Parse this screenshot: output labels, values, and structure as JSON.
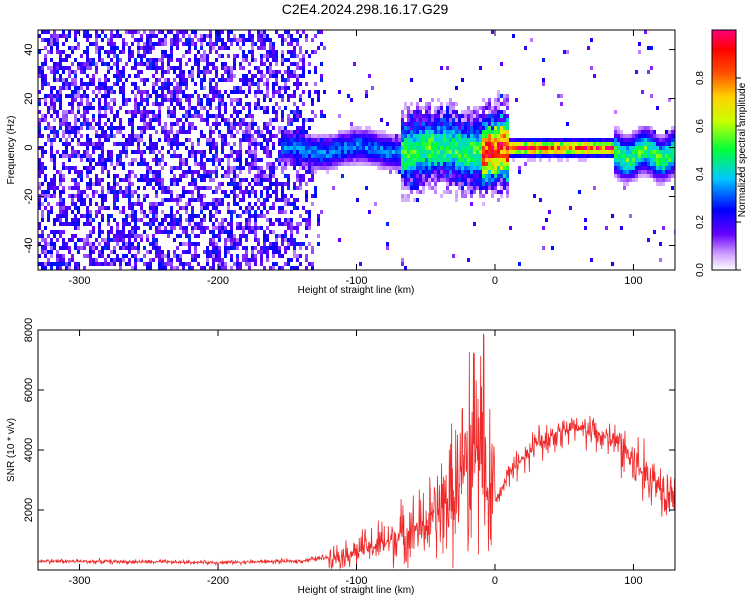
{
  "title": "C2E4.2024.298.16.17.G29",
  "colors": {
    "snr_line": "#ee2a2a",
    "cmap": [
      "#ffffff",
      "#6600ff",
      "#0000ff",
      "#00c8ff",
      "#00ff3c",
      "#ffff00",
      "#ff8000",
      "#ff0000",
      "#ff0080"
    ]
  },
  "chart_data": [
    {
      "type": "heatmap",
      "xlabel": "Height of straight line (km)",
      "ylabel": "Frequency (Hz)",
      "xlim": [
        -330,
        130
      ],
      "ylim": [
        -50,
        48
      ],
      "xticks": [
        -300,
        -200,
        -100,
        0,
        100
      ],
      "yticks": [
        -40,
        -20,
        0,
        20,
        40
      ],
      "colorbar": {
        "label": "Normalized spectral amplitude",
        "range": [
          0,
          1
        ],
        "ticks": [
          "0.0",
          "0.2",
          "0.4",
          "0.6",
          "0.8"
        ]
      },
      "description_points": [
        {
          "x": -330,
          "noise_level": 0.25
        },
        {
          "x": -150,
          "noise_level": 0.25
        },
        {
          "x": -120,
          "noise_level": 0.05
        },
        {
          "x": 0,
          "ridge_freq": 1,
          "peak_amp": 0.95
        },
        {
          "x": 130,
          "ridge_freq": -2,
          "peak_amp": 0.5
        }
      ]
    },
    {
      "type": "line",
      "xlabel": "Height of straight line (km)",
      "ylabel": "SNR (10 * v/v)",
      "xlim": [
        -330,
        130
      ],
      "ylim": [
        0,
        8000
      ],
      "xticks": [
        -300,
        -200,
        -100,
        0,
        100
      ],
      "yticks": [
        2000,
        4000,
        6000,
        8000
      ],
      "envelope": {
        "x": [
          -330,
          -200,
          -140,
          -110,
          -80,
          -50,
          -30,
          -15,
          -10,
          0,
          10,
          30,
          50,
          70,
          90,
          100,
          110,
          130
        ],
        "y": [
          300,
          250,
          300,
          500,
          900,
          1500,
          2500,
          4000,
          3500,
          2200,
          3200,
          4200,
          4700,
          4600,
          4200,
          3600,
          3100,
          2600
        ]
      }
    }
  ]
}
